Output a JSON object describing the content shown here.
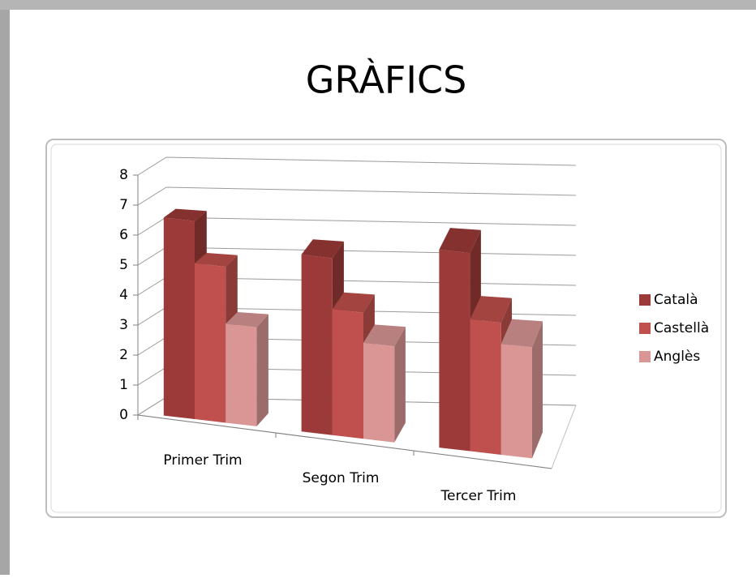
{
  "chart_data": {
    "type": "bar3d",
    "title": "GRÀFICS",
    "categories": [
      "Primer Trim",
      "Segon Trim",
      "Tercer Trim"
    ],
    "series": [
      {
        "name": "Català",
        "color": "#9b3a38",
        "values": [
          6.6,
          5.9,
          6.6
        ]
      },
      {
        "name": "Castellà",
        "color": "#c0504d",
        "values": [
          5.2,
          4.2,
          4.4
        ]
      },
      {
        "name": "Anglès",
        "color": "#d99694",
        "values": [
          3.3,
          3.2,
          3.7
        ]
      }
    ],
    "ylim": [
      0,
      8
    ],
    "yticks": [
      0,
      1,
      2,
      3,
      4,
      5,
      6,
      7,
      8
    ],
    "grid": true,
    "legend": "right"
  }
}
